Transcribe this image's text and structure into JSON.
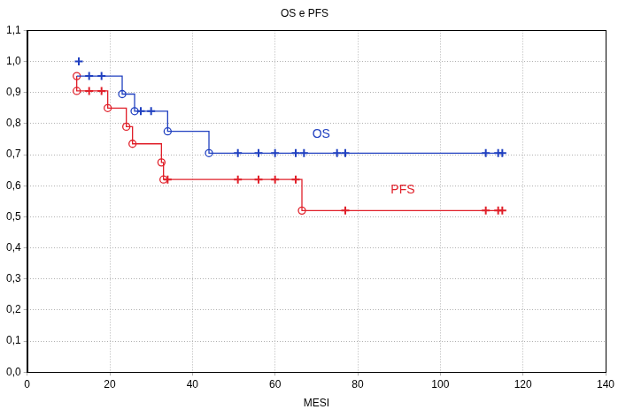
{
  "chart_data": {
    "type": "line",
    "title": "OS e PFS",
    "x_label": "MESI",
    "xlim": [
      0,
      140
    ],
    "xticks": [
      0,
      20,
      40,
      60,
      80,
      100,
      120,
      140
    ],
    "ylim": [
      0,
      1.1
    ],
    "yticks": [
      {
        "value": 0,
        "label": "0,0"
      },
      {
        "value": 0.1,
        "label": "0,1"
      },
      {
        "value": 0.2,
        "label": "0,2"
      },
      {
        "value": 0.3,
        "label": "0,3"
      },
      {
        "value": 0.4,
        "label": "0,4"
      },
      {
        "value": 0.5,
        "label": "0,5"
      },
      {
        "value": 0.6,
        "label": "0,6"
      },
      {
        "value": 0.7,
        "label": "0,7"
      },
      {
        "value": 0.8,
        "label": "0,8"
      },
      {
        "value": 0.9,
        "label": "0,9"
      },
      {
        "value": 1.0,
        "label": "1,0"
      },
      {
        "value": 1.1,
        "label": "1,1"
      }
    ],
    "grid": true,
    "series": [
      {
        "name": "OS",
        "type": "line",
        "line_style": "step",
        "color": "#2040c0",
        "x": [
          12,
          15,
          18,
          23,
          26,
          27.5,
          30,
          34,
          44,
          51,
          56,
          60,
          65,
          67,
          75,
          77,
          111,
          114,
          115
        ],
        "values": [
          0.953,
          0.953,
          0.953,
          0.895,
          0.84,
          0.84,
          0.84,
          0.775,
          0.705,
          0.705,
          0.705,
          0.705,
          0.705,
          0.705,
          0.705,
          0.705,
          0.705,
          0.705,
          0.705
        ]
      },
      {
        "type": "scatter",
        "marker": "cross",
        "color": "#2040c0",
        "x": [
          12.5,
          15,
          18,
          27.5,
          30,
          51,
          56,
          60,
          65,
          67,
          75,
          77,
          111,
          114,
          115
        ],
        "values": [
          1.0,
          0.953,
          0.953,
          0.84,
          0.84,
          0.705,
          0.705,
          0.705,
          0.705,
          0.705,
          0.705,
          0.705,
          0.705,
          0.705,
          0.705
        ]
      },
      {
        "type": "scatter",
        "marker": "circle",
        "color": "#2040c0",
        "x": [
          23,
          26,
          34,
          44
        ],
        "values": [
          0.895,
          0.84,
          0.775,
          0.705
        ]
      },
      {
        "name": "PFS",
        "type": "line",
        "line_style": "step",
        "color": "#e0202a",
        "x": [
          12,
          12,
          15,
          18,
          19.5,
          24,
          25.5,
          32.5,
          33,
          34,
          51,
          56,
          60,
          65,
          66.5,
          77,
          111,
          114,
          115
        ],
        "values": [
          0.953,
          0.905,
          0.905,
          0.905,
          0.85,
          0.79,
          0.735,
          0.675,
          0.62,
          0.62,
          0.62,
          0.62,
          0.62,
          0.62,
          0.52,
          0.52,
          0.52,
          0.52,
          0.52
        ]
      },
      {
        "type": "scatter",
        "marker": "cross",
        "color": "#e0202a",
        "x": [
          15,
          18,
          34,
          51,
          56,
          60,
          65,
          77,
          111,
          114,
          115
        ],
        "values": [
          0.905,
          0.905,
          0.62,
          0.62,
          0.62,
          0.62,
          0.62,
          0.52,
          0.52,
          0.52,
          0.52
        ]
      },
      {
        "type": "scatter",
        "marker": "circle",
        "color": "#e0202a",
        "x": [
          12,
          12,
          19.5,
          24,
          25.5,
          32.5,
          33,
          66.5
        ],
        "values": [
          0.953,
          0.905,
          0.85,
          0.79,
          0.735,
          0.675,
          0.62,
          0.52
        ]
      }
    ],
    "annotations": [
      {
        "text": "OS",
        "x": 69,
        "y": 0.765,
        "color": "#2040c0"
      },
      {
        "text": "PFS",
        "x": 88,
        "y": 0.585,
        "color": "#e0202a"
      }
    ]
  }
}
